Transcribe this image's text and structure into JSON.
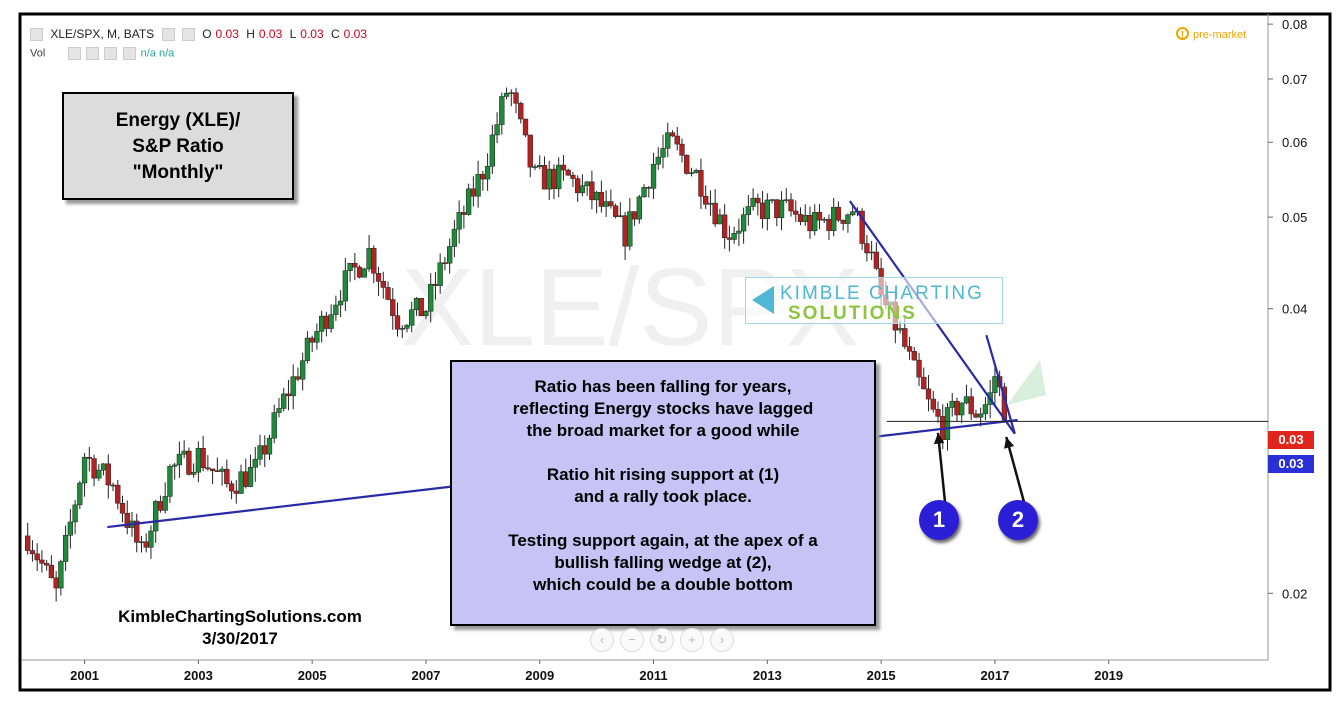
{
  "header": {
    "symbol": "XLE/SPX, M, BATS",
    "o_label": "O",
    "o_value": "0.03",
    "h_label": "H",
    "h_value": "0.03",
    "l_label": "L",
    "l_value": "0.03",
    "c_label": "C",
    "c_value": "0.03",
    "vol_label": "Vol",
    "vol_values": "n/a n/a",
    "pre_market": "pre-market",
    "alert_glyph": "!"
  },
  "watermark": "XLE/SPX",
  "logo": {
    "line1": "KIMBLE CHARTING",
    "line2": "SOLUTIONS"
  },
  "title_box": {
    "line1": "Energy (XLE)/",
    "line2": "S&P Ratio",
    "line3": "\"Monthly\""
  },
  "note_box": {
    "p1": [
      "Ratio has been falling for years,",
      "reflecting Energy stocks have lagged",
      "the broad market for a good while"
    ],
    "p2": [
      "Ratio hit rising support at (1)",
      "and a rally took place."
    ],
    "p3": [
      "Testing support again, at the apex of a",
      "bullish falling wedge at (2),",
      "which could be a double bottom"
    ]
  },
  "credit": {
    "site": "KimbleChartingSolutions.com",
    "date": "3/30/2017"
  },
  "badges": [
    "1",
    "2"
  ],
  "price_labels": [
    {
      "value": "0.03",
      "color": "#e0261c"
    },
    {
      "value": "0.03",
      "color": "#2a2fd6"
    }
  ],
  "nav_icons": [
    "chevron-left-icon",
    "zoom-out-icon",
    "reset-icon",
    "zoom-in-icon",
    "chevron-right-icon"
  ],
  "colors": {
    "up": "#1e8a3a",
    "down": "#b22222",
    "trendline": "#2a2aa8",
    "label_red": "#e0261c",
    "label_blue": "#2a2fd6"
  },
  "chart_data": {
    "type": "candlestick",
    "title": "Energy (XLE)/ S&P Ratio \"Monthly\"",
    "xlabel": "",
    "ylabel": "",
    "y_scale": "log",
    "ylim": [
      0.017,
      0.082
    ],
    "xlim": [
      1999.9,
      2021.8
    ],
    "x_ticks": [
      "2001",
      "2003",
      "2005",
      "2007",
      "2009",
      "2011",
      "2013",
      "2015",
      "2017",
      "2019"
    ],
    "y_ticks": [
      "0.08",
      "0.07",
      "0.06",
      "0.05",
      "0.04",
      "0.02"
    ],
    "series": [
      {
        "name": "XLE/SPX close",
        "x": [
          2000.0,
          2000.5,
          2001.0,
          2001.5,
          2002.0,
          2002.5,
          2003.0,
          2003.5,
          2004.0,
          2004.5,
          2005.0,
          2005.5,
          2006.0,
          2006.5,
          2007.0,
          2007.5,
          2008.0,
          2008.45,
          2008.9,
          2009.5,
          2010.0,
          2010.5,
          2011.0,
          2011.3,
          2011.8,
          2012.3,
          2012.8,
          2013.3,
          2013.8,
          2014.2,
          2014.5,
          2014.8,
          2015.0,
          2015.3,
          2015.6,
          2015.9,
          2016.1,
          2016.4,
          2016.7,
          2016.9,
          2017.0,
          2017.2
        ],
        "y": [
          0.023,
          0.02,
          0.028,
          0.026,
          0.022,
          0.027,
          0.028,
          0.026,
          0.027,
          0.032,
          0.037,
          0.042,
          0.046,
          0.039,
          0.04,
          0.048,
          0.056,
          0.069,
          0.055,
          0.055,
          0.052,
          0.048,
          0.057,
          0.06,
          0.055,
          0.048,
          0.051,
          0.051,
          0.049,
          0.05,
          0.051,
          0.046,
          0.041,
          0.038,
          0.034,
          0.031,
          0.03,
          0.032,
          0.031,
          0.032,
          0.034,
          0.031
        ]
      }
    ],
    "annotations": [
      {
        "type": "trendline",
        "name": "rising support",
        "points": [
          [
            2001.4,
            0.0235
          ],
          [
            2017.4,
            0.0305
          ]
        ]
      },
      {
        "type": "trendline",
        "name": "wedge upper",
        "points": [
          [
            2014.45,
            0.052
          ],
          [
            2017.35,
            0.0295
          ]
        ]
      },
      {
        "type": "trendline",
        "name": "wedge lower",
        "points": [
          [
            2016.85,
            0.0375
          ],
          [
            2017.35,
            0.0295
          ]
        ]
      },
      {
        "type": "hline",
        "name": "current level",
        "value": 0.0304
      },
      {
        "type": "marker",
        "label": "1",
        "x": 2016.0,
        "y": 0.03
      },
      {
        "type": "marker",
        "label": "2",
        "x": 2017.2,
        "y": 0.0297
      }
    ]
  }
}
